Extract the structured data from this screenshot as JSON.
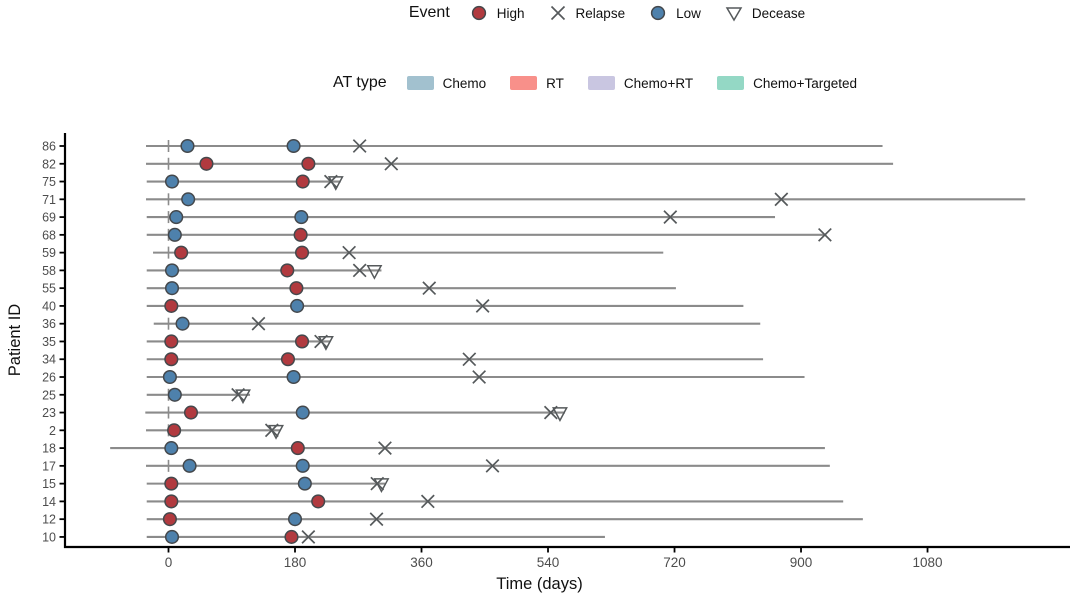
{
  "chart_data": {
    "type": "scatter",
    "subtype": "swimmer-timeline",
    "xlabel": "Time (days)",
    "ylabel": "Patient ID",
    "x_ticks": [
      0,
      180,
      360,
      540,
      720,
      900,
      1080
    ],
    "xlim": [
      -147,
      1260
    ],
    "grid": "off",
    "event_legend": {
      "title": "Event",
      "items": [
        {
          "label": "High",
          "marker": "circle",
          "color": "#B13A3F"
        },
        {
          "label": "Relapse",
          "marker": "x",
          "color": "#55595B"
        },
        {
          "label": "Low",
          "marker": "circle",
          "color": "#4E81AC"
        },
        {
          "label": "Decease",
          "marker": "triangle-down",
          "color": "#55595B"
        }
      ]
    },
    "at_legend": {
      "title": "AT type",
      "items": [
        {
          "label": "Chemo",
          "color": "#A2C1CF"
        },
        {
          "label": "RT",
          "color": "#F8908A"
        },
        {
          "label": "Chemo+RT",
          "color": "#C9C6E1"
        },
        {
          "label": "Chemo+Targeted",
          "color": "#94D8C5"
        }
      ]
    },
    "colors": {
      "high": "#B13A3F",
      "low": "#4E81AC",
      "marker_stroke": "#44484C",
      "timeline": "#8B8B8B",
      "event_glyph": "#55595B",
      "axis": "#000000",
      "tick_label": "#4D4D4D"
    },
    "zero_tick_day": 0,
    "patients": [
      {
        "id": "86",
        "line": [
          -32,
          1016
        ],
        "events": [
          {
            "type": "Low",
            "day": 27
          },
          {
            "type": "Low",
            "day": 178
          },
          {
            "type": "Relapse",
            "day": 272
          }
        ]
      },
      {
        "id": "82",
        "line": [
          -32,
          1031
        ],
        "events": [
          {
            "type": "High",
            "day": 54
          },
          {
            "type": "High",
            "day": 199
          },
          {
            "type": "Relapse",
            "day": 317
          }
        ]
      },
      {
        "id": "75",
        "line": [
          -31,
          245
        ],
        "events": [
          {
            "type": "Low",
            "day": 5
          },
          {
            "type": "High",
            "day": 191
          },
          {
            "type": "Relapse",
            "day": 231
          },
          {
            "type": "Decease",
            "day": 238
          }
        ]
      },
      {
        "id": "71",
        "line": [
          -32,
          1219
        ],
        "events": [
          {
            "type": "Low",
            "day": 28
          },
          {
            "type": "Relapse",
            "day": 872
          }
        ]
      },
      {
        "id": "69",
        "line": [
          -31,
          863
        ],
        "events": [
          {
            "type": "Low",
            "day": 11
          },
          {
            "type": "Low",
            "day": 189
          },
          {
            "type": "Relapse",
            "day": 714
          }
        ]
      },
      {
        "id": "68",
        "line": [
          -31,
          936
        ],
        "events": [
          {
            "type": "Low",
            "day": 9
          },
          {
            "type": "High",
            "day": 188
          },
          {
            "type": "Relapse",
            "day": 934
          }
        ]
      },
      {
        "id": "59",
        "line": [
          -22,
          704
        ],
        "events": [
          {
            "type": "High",
            "day": 18
          },
          {
            "type": "High",
            "day": 190
          },
          {
            "type": "Relapse",
            "day": 257
          }
        ]
      },
      {
        "id": "58",
        "line": [
          -31,
          303
        ],
        "events": [
          {
            "type": "Low",
            "day": 5
          },
          {
            "type": "High",
            "day": 169
          },
          {
            "type": "Relapse",
            "day": 272
          },
          {
            "type": "Decease",
            "day": 293
          }
        ]
      },
      {
        "id": "55",
        "line": [
          -31,
          722
        ],
        "events": [
          {
            "type": "Low",
            "day": 5
          },
          {
            "type": "High",
            "day": 182
          },
          {
            "type": "Relapse",
            "day": 371
          }
        ]
      },
      {
        "id": "40",
        "line": [
          -31,
          818
        ],
        "events": [
          {
            "type": "High",
            "day": 4
          },
          {
            "type": "Low",
            "day": 183
          },
          {
            "type": "Relapse",
            "day": 447
          }
        ]
      },
      {
        "id": "36",
        "line": [
          -21,
          842
        ],
        "events": [
          {
            "type": "Low",
            "day": 20
          },
          {
            "type": "Relapse",
            "day": 128
          }
        ]
      },
      {
        "id": "35",
        "line": [
          -31,
          230
        ],
        "events": [
          {
            "type": "High",
            "day": 4
          },
          {
            "type": "High",
            "day": 190
          },
          {
            "type": "Relapse",
            "day": 217
          },
          {
            "type": "Decease",
            "day": 224
          }
        ]
      },
      {
        "id": "34",
        "line": [
          -31,
          846
        ],
        "events": [
          {
            "type": "High",
            "day": 4
          },
          {
            "type": "High",
            "day": 170
          },
          {
            "type": "Relapse",
            "day": 428
          }
        ]
      },
      {
        "id": "26",
        "line": [
          -31,
          905
        ],
        "events": [
          {
            "type": "Low",
            "day": 2
          },
          {
            "type": "Low",
            "day": 178
          },
          {
            "type": "Relapse",
            "day": 442
          }
        ]
      },
      {
        "id": "25",
        "line": [
          -31,
          116
        ],
        "events": [
          {
            "type": "Low",
            "day": 9
          },
          {
            "type": "Relapse",
            "day": 99
          },
          {
            "type": "Decease",
            "day": 106
          }
        ]
      },
      {
        "id": "23",
        "line": [
          -33,
          564
        ],
        "events": [
          {
            "type": "High",
            "day": 32
          },
          {
            "type": "Low",
            "day": 191
          },
          {
            "type": "Relapse",
            "day": 544
          },
          {
            "type": "Decease",
            "day": 557
          }
        ]
      },
      {
        "id": "2",
        "line": [
          -32,
          159
        ],
        "events": [
          {
            "type": "High",
            "day": 8
          },
          {
            "type": "Relapse",
            "day": 147
          },
          {
            "type": "Decease",
            "day": 153
          }
        ]
      },
      {
        "id": "18",
        "line": [
          -83,
          934
        ],
        "events": [
          {
            "type": "Low",
            "day": 4
          },
          {
            "type": "High",
            "day": 184
          },
          {
            "type": "Relapse",
            "day": 308
          }
        ]
      },
      {
        "id": "17",
        "line": [
          -32,
          941
        ],
        "events": [
          {
            "type": "Low",
            "day": 30
          },
          {
            "type": "Low",
            "day": 191
          },
          {
            "type": "Relapse",
            "day": 461
          }
        ]
      },
      {
        "id": "15",
        "line": [
          -31,
          308
        ],
        "events": [
          {
            "type": "High",
            "day": 4
          },
          {
            "type": "Low",
            "day": 194
          },
          {
            "type": "Relapse",
            "day": 297
          },
          {
            "type": "Decease",
            "day": 303
          }
        ]
      },
      {
        "id": "14",
        "line": [
          -31,
          960
        ],
        "events": [
          {
            "type": "High",
            "day": 4
          },
          {
            "type": "High",
            "day": 213
          },
          {
            "type": "Relapse",
            "day": 369
          }
        ]
      },
      {
        "id": "12",
        "line": [
          -31,
          988
        ],
        "events": [
          {
            "type": "High",
            "day": 2
          },
          {
            "type": "Low",
            "day": 180
          },
          {
            "type": "Relapse",
            "day": 296
          }
        ]
      },
      {
        "id": "10",
        "line": [
          -31,
          621
        ],
        "events": [
          {
            "type": "Low",
            "day": 5
          },
          {
            "type": "High",
            "day": 175
          },
          {
            "type": "Relapse",
            "day": 199
          }
        ]
      }
    ]
  }
}
